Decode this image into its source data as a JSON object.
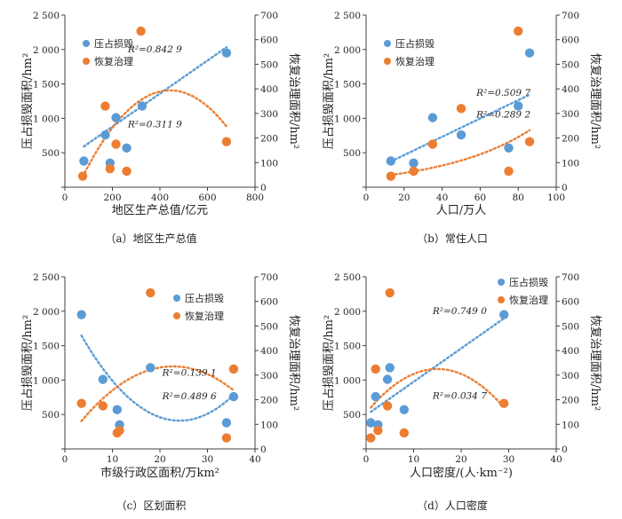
{
  "colors": {
    "loss": "#5b9bd5",
    "restore": "#ed7d31",
    "axis": "#404040"
  },
  "legend": {
    "loss": "压占损毁",
    "restore": "恢复治理"
  },
  "chart_data": [
    {
      "type": "scatter",
      "caption": "（a）地区生产总值",
      "xlabel": "地区生产总值/亿元",
      "ylabel": "压占损毁面积/hm²",
      "y2label": "恢复治理面积/hm²",
      "xlim": [
        0,
        800
      ],
      "xticks": [
        "0",
        "200",
        "400",
        "600",
        "800"
      ],
      "ylim": [
        0,
        2500
      ],
      "yticks": [
        "",
        "500",
        "1 000",
        "1 500",
        "2 000",
        "2 500"
      ],
      "y2lim": [
        0,
        700
      ],
      "y2ticks": [
        "0",
        "100",
        "200",
        "300",
        "400",
        "500",
        "600",
        "700"
      ],
      "legend_position": "top-left",
      "series": [
        {
          "name": "压占损毁",
          "x": [
            80,
            170,
            190,
            215,
            260,
            325,
            680
          ],
          "y": [
            380,
            760,
            350,
            1010,
            570,
            1180,
            1950
          ]
        },
        {
          "name": "恢复治理",
          "x": [
            75,
            170,
            190,
            215,
            260,
            320,
            680
          ],
          "y": [
            45,
            330,
            75,
            175,
            65,
            635,
            185
          ]
        }
      ],
      "trends": [
        {
          "series": 0,
          "kind": "linear",
          "fit": [
            400,
            2.4
          ]
        },
        {
          "series": 1,
          "kind": "poly2",
          "fit": [
            -115,
            2.3,
            -0.0026
          ]
        }
      ],
      "annotations": [
        {
          "text": "R²=0.842 9",
          "x": 265,
          "y": 1960
        },
        {
          "text": "R²=0.311 9",
          "x": 265,
          "y": 870
        }
      ]
    },
    {
      "type": "scatter",
      "caption": "（b）常住人口",
      "xlabel": "人口/万人",
      "ylabel": "压占损毁面积/hm²",
      "y2label": "恢复治理面积/hm²",
      "xlim": [
        0,
        100
      ],
      "xticks": [
        "0",
        "20",
        "40",
        "60",
        "80",
        "100"
      ],
      "ylim": [
        0,
        2500
      ],
      "yticks": [
        "",
        "500",
        "1 000",
        "1 500",
        "2 000",
        "2 500"
      ],
      "y2lim": [
        0,
        700
      ],
      "y2ticks": [
        "0",
        "100",
        "200",
        "300",
        "400",
        "500",
        "600",
        "700"
      ],
      "legend_position": "top-left",
      "series": [
        {
          "name": "压占损毁",
          "x": [
            13,
            25,
            35,
            50,
            75,
            80,
            86
          ],
          "y": [
            380,
            350,
            1010,
            760,
            570,
            1180,
            1950
          ]
        },
        {
          "name": "恢复治理",
          "x": [
            13,
            25,
            35,
            50,
            75,
            80,
            86
          ],
          "y": [
            45,
            65,
            175,
            320,
            65,
            635,
            185
          ]
        }
      ],
      "trends": [
        {
          "series": 0,
          "kind": "linear",
          "fit": [
            200,
            13.3
          ]
        },
        {
          "series": 1,
          "kind": "exp",
          "fit": [
            38,
            0.021
          ]
        }
      ],
      "annotations": [
        {
          "text": "R²=0.509 7",
          "x": 58,
          "y": 1330
        },
        {
          "text": "R²=0.289 2",
          "x": 58,
          "y": 1010
        }
      ]
    },
    {
      "type": "scatter",
      "caption": "（c）区划面积",
      "xlabel": "市级行政区面积/万km²",
      "ylabel": "压占损毁面积/hm²",
      "y2label": "恢复治理面积/hm²",
      "xlim": [
        0,
        40
      ],
      "xticks": [
        "0",
        "10",
        "20",
        "30",
        "40"
      ],
      "ylim": [
        0,
        2500
      ],
      "yticks": [
        "",
        "500",
        "1 000",
        "1 500",
        "2 000",
        "2 500"
      ],
      "y2lim": [
        0,
        700
      ],
      "y2ticks": [
        "0",
        "100",
        "200",
        "300",
        "400",
        "500",
        "600",
        "700"
      ],
      "legend_position": "upper-right",
      "series": [
        {
          "name": "压占损毁",
          "x": [
            3.5,
            8,
            11,
            11.5,
            18,
            34,
            35.5
          ],
          "y": [
            1950,
            1010,
            570,
            350,
            1180,
            380,
            760
          ]
        },
        {
          "name": "恢复治理",
          "x": [
            3.5,
            8,
            11,
            11.5,
            18,
            34,
            35.5
          ],
          "y": [
            185,
            175,
            65,
            75,
            635,
            45,
            325
          ]
        }
      ],
      "trends": [
        {
          "series": 0,
          "kind": "poly2",
          "fit": [
            2100,
            -140,
            2.9
          ]
        },
        {
          "series": 1,
          "kind": "poly2",
          "fit": [
            25,
            27.3,
            -0.6
          ]
        }
      ],
      "annotations": [
        {
          "text": "R²=0.139 1",
          "x": 20.5,
          "y": 1060
        },
        {
          "text": "R²=0.489 6",
          "x": 20.5,
          "y": 720
        }
      ]
    },
    {
      "type": "scatter",
      "caption": "（d）人口密度",
      "xlabel": "人口密度/(人·km⁻²)",
      "ylabel": "压占损毁面积/hm²",
      "y2label": "恢复治理面积/hm²",
      "xlim": [
        0,
        40
      ],
      "xticks": [
        "0",
        "10",
        "20",
        "30",
        "40"
      ],
      "ylim": [
        0,
        2500
      ],
      "yticks": [
        "",
        "500",
        "1 000",
        "1 500",
        "2 000",
        "2 500"
      ],
      "y2lim": [
        0,
        700
      ],
      "y2ticks": [
        "0",
        "100",
        "200",
        "300",
        "400",
        "500",
        "600",
        "700"
      ],
      "legend_position": "top-right",
      "series": [
        {
          "name": "压占损毁",
          "x": [
            1,
            2,
            2.5,
            4.5,
            5,
            8,
            29
          ],
          "y": [
            380,
            760,
            350,
            1010,
            1180,
            570,
            1950
          ]
        },
        {
          "name": "恢复治理",
          "x": [
            1,
            2,
            2.5,
            4.5,
            5,
            8,
            29
          ],
          "y": [
            45,
            325,
            75,
            175,
            635,
            65,
            185
          ]
        }
      ],
      "trends": [
        {
          "series": 0,
          "kind": "linear",
          "fit": [
            490,
            48.5
          ]
        },
        {
          "series": 1,
          "kind": "poly2",
          "fit": [
            145,
            24,
            -0.8
          ]
        }
      ],
      "annotations": [
        {
          "text": "R²=0.749 0",
          "x": 14,
          "y": 1960
        },
        {
          "text": "R²=0.034 7",
          "x": 14,
          "y": 730
        }
      ]
    }
  ]
}
